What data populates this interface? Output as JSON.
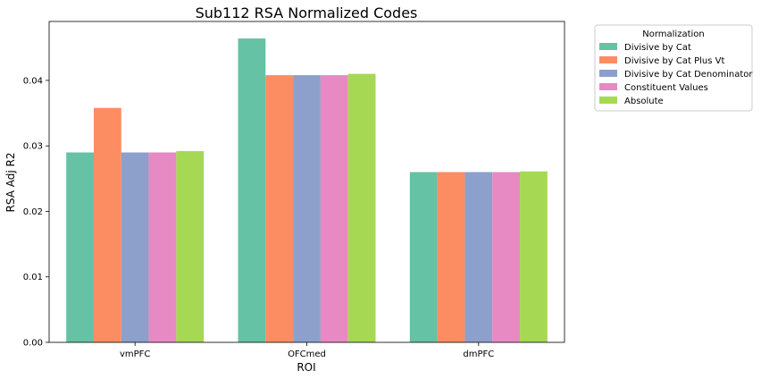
{
  "chart_data": {
    "type": "bar",
    "title": "Sub112 RSA Normalized Codes",
    "xlabel": "ROI",
    "ylabel": "RSA Adj R2",
    "ylim": [
      0,
      0.049
    ],
    "yticks": [
      "0.00",
      "0.01",
      "0.02",
      "0.03",
      "0.04"
    ],
    "categories": [
      "vmPFC",
      "OFCmed",
      "dmPFC"
    ],
    "grid": false,
    "legend": {
      "title": "Normalization",
      "placement": "outside-top-right"
    },
    "series": [
      {
        "name": "Divisive by Cat",
        "color": "#66c2a5",
        "values": [
          0.029,
          0.0464,
          0.026
        ]
      },
      {
        "name": "Divisive by Cat Plus Vt",
        "color": "#fc8d62",
        "values": [
          0.0358,
          0.0408,
          0.026
        ]
      },
      {
        "name": "Divisive by Cat Denominator",
        "color": "#8da0cb",
        "values": [
          0.029,
          0.0408,
          0.026
        ]
      },
      {
        "name": "Constituent Values",
        "color": "#e78ac3",
        "values": [
          0.029,
          0.0408,
          0.026
        ]
      },
      {
        "name": "Absolute",
        "color": "#a6d854",
        "values": [
          0.0292,
          0.041,
          0.0261
        ]
      }
    ]
  }
}
